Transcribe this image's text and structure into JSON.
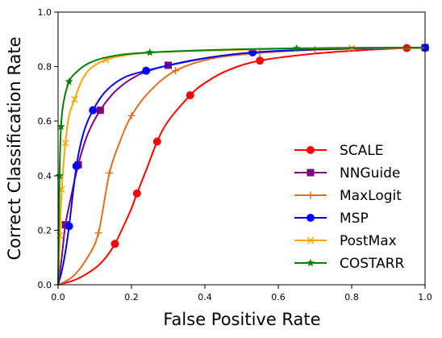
{
  "chart_data": {
    "type": "line",
    "title": "",
    "xlabel": "False Positive Rate",
    "ylabel": "Correct Classification Rate",
    "xlim": [
      0.0,
      1.0
    ],
    "ylim": [
      0.0,
      1.0
    ],
    "xticks": [
      "0.0",
      "0.2",
      "0.4",
      "0.6",
      "0.8",
      "1.0"
    ],
    "yticks": [
      "0.0",
      "0.2",
      "0.4",
      "0.6",
      "0.8",
      "1.0"
    ],
    "grid": false,
    "legend_position": "lower-right",
    "series": [
      {
        "name": "SCALE",
        "color": "#ff0000",
        "marker": "circle",
        "x": [
          0.0,
          0.05,
          0.1,
          0.13,
          0.155,
          0.18,
          0.2,
          0.215,
          0.24,
          0.27,
          0.3,
          0.36,
          0.4,
          0.46,
          0.55,
          0.7,
          0.85,
          0.95,
          1.0
        ],
        "y": [
          0.0,
          0.02,
          0.06,
          0.1,
          0.15,
          0.22,
          0.28,
          0.335,
          0.42,
          0.525,
          0.6,
          0.695,
          0.74,
          0.785,
          0.822,
          0.848,
          0.862,
          0.868,
          0.868
        ],
        "marker_index": [
          4,
          7,
          9,
          11,
          14,
          17
        ]
      },
      {
        "name": "NNGuide",
        "color": "#800080",
        "marker": "square",
        "x": [
          0.0,
          0.01,
          0.02,
          0.035,
          0.055,
          0.08,
          0.115,
          0.16,
          0.22,
          0.3,
          0.42,
          0.55,
          0.7,
          0.85,
          1.0
        ],
        "y": [
          0.0,
          0.1,
          0.22,
          0.32,
          0.44,
          0.55,
          0.64,
          0.715,
          0.77,
          0.805,
          0.835,
          0.852,
          0.862,
          0.867,
          0.87
        ],
        "marker_index": [
          2,
          4,
          6,
          9,
          14
        ]
      },
      {
        "name": "MaxLogit",
        "color": "#e07020",
        "marker": "plus",
        "x": [
          0.0,
          0.04,
          0.08,
          0.11,
          0.14,
          0.17,
          0.2,
          0.25,
          0.32,
          0.42,
          0.55,
          0.7,
          0.85,
          1.0
        ],
        "y": [
          0.0,
          0.03,
          0.1,
          0.19,
          0.41,
          0.53,
          0.62,
          0.71,
          0.785,
          0.83,
          0.85,
          0.862,
          0.867,
          0.868
        ],
        "marker_index": [
          3,
          4,
          6,
          8,
          10,
          11,
          13
        ]
      },
      {
        "name": "MSP",
        "color": "#0000ff",
        "marker": "circle",
        "x": [
          0.0,
          0.01,
          0.02,
          0.03,
          0.05,
          0.07,
          0.095,
          0.13,
          0.18,
          0.24,
          0.32,
          0.42,
          0.53,
          0.7,
          0.85,
          1.0
        ],
        "y": [
          0.0,
          0.05,
          0.12,
          0.215,
          0.435,
          0.56,
          0.64,
          0.71,
          0.76,
          0.785,
          0.81,
          0.835,
          0.852,
          0.863,
          0.867,
          0.869
        ],
        "marker_index": [
          3,
          4,
          6,
          9,
          12,
          15
        ]
      },
      {
        "name": "PostMax",
        "color": "#ffa500",
        "marker": "x",
        "x": [
          0.0,
          0.005,
          0.01,
          0.02,
          0.03,
          0.045,
          0.065,
          0.09,
          0.13,
          0.2,
          0.3,
          0.45,
          0.6,
          0.8,
          1.0
        ],
        "y": [
          0.0,
          0.18,
          0.35,
          0.52,
          0.62,
          0.68,
          0.75,
          0.795,
          0.825,
          0.845,
          0.855,
          0.86,
          0.865,
          0.868,
          0.869
        ],
        "marker_index": [
          1,
          2,
          3,
          5,
          8,
          13
        ]
      },
      {
        "name": "COSTARR",
        "color": "#008000",
        "marker": "star",
        "x": [
          0.0,
          0.004,
          0.008,
          0.015,
          0.03,
          0.05,
          0.08,
          0.12,
          0.18,
          0.25,
          0.35,
          0.5,
          0.65,
          0.8,
          1.0
        ],
        "y": [
          0.0,
          0.4,
          0.58,
          0.67,
          0.745,
          0.78,
          0.81,
          0.83,
          0.845,
          0.852,
          0.858,
          0.864,
          0.867,
          0.869,
          0.87
        ],
        "marker_index": [
          1,
          2,
          4,
          9,
          12
        ]
      }
    ]
  }
}
